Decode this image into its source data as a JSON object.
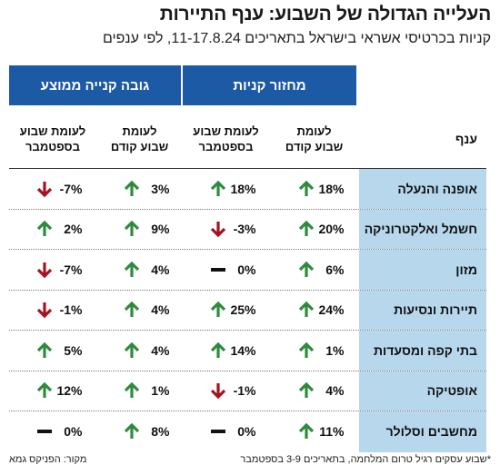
{
  "title": "העלייה הגדולה של השבוע: ענף התיירות",
  "subtitle": "קניות בכרטיסי אשראי בישראל בתאריכים 11-17.8.24, לפי ענפים",
  "group_headers": {
    "turnover": "מחזור קניות",
    "avg_purchase": "גובה קנייה ממוצע"
  },
  "column_headers": {
    "branch": "ענף",
    "turnover_vs_prev_week": "לעומת\nשבוע קודם",
    "turnover_vs_sept_week": "לעומת שבוע\nבספטמבר",
    "avg_vs_prev_week": "לעומת\nשבוע קודם",
    "avg_vs_sept_week": "לעומת שבוע\nבספטמבר"
  },
  "colors": {
    "header_blue": "#1c5aa6",
    "branch_bg": "#b6d7ec",
    "up": "#2e8b3e",
    "down": "#a3141f",
    "flat": "#111111"
  },
  "rows": [
    {
      "branch": "אופנה והנעלה",
      "t1": "18%",
      "t1_dir": "up",
      "t2": "18%",
      "t2_dir": "up",
      "a1": "3%",
      "a1_dir": "up",
      "a2": "-7%",
      "a2_dir": "down"
    },
    {
      "branch": "חשמל ואלקטרוניקה",
      "t1": "20%",
      "t1_dir": "up",
      "t2": "-3%",
      "t2_dir": "down",
      "a1": "9%",
      "a1_dir": "up",
      "a2": "2%",
      "a2_dir": "up"
    },
    {
      "branch": "מזון",
      "t1": "6%",
      "t1_dir": "up",
      "t2": "0%",
      "t2_dir": "flat",
      "a1": "4%",
      "a1_dir": "up",
      "a2": "-7%",
      "a2_dir": "down"
    },
    {
      "branch": "תיירות ונסיעות",
      "t1": "24%",
      "t1_dir": "up",
      "t2": "25%",
      "t2_dir": "up",
      "a1": "4%",
      "a1_dir": "up",
      "a2": "-1%",
      "a2_dir": "down"
    },
    {
      "branch": "בתי קפה ומסעדות",
      "t1": "1%",
      "t1_dir": "up",
      "t2": "14%",
      "t2_dir": "up",
      "a1": "4%",
      "a1_dir": "up",
      "a2": "5%",
      "a2_dir": "up"
    },
    {
      "branch": "אופטיקה",
      "t1": "4%",
      "t1_dir": "up",
      "t2": "-1%",
      "t2_dir": "down",
      "a1": "1%",
      "a1_dir": "up",
      "a2": "12%",
      "a2_dir": "up"
    },
    {
      "branch": "מחשבים וסלולר",
      "t1": "11%",
      "t1_dir": "up",
      "t2": "0%",
      "t2_dir": "flat",
      "a1": "8%",
      "a1_dir": "up",
      "a2": "0%",
      "a2_dir": "flat"
    }
  ],
  "footnote": "*שבוע עסקים רגיל טרום המלחמה, בתאריכים 3-9 בספטמבר",
  "source": "מקור: הפניקס גמא"
}
